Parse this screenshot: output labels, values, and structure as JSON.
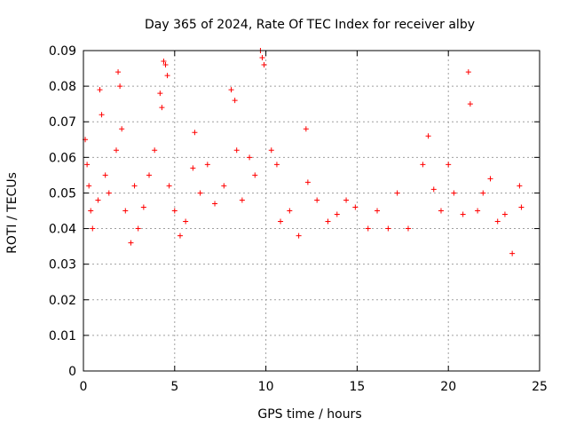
{
  "chart_data": {
    "type": "scatter",
    "title": "Day 365 of 2024, Rate Of TEC Index for receiver alby",
    "xlabel": "GPS time / hours",
    "ylabel": "ROTI / TECUs",
    "xlim": [
      0,
      25
    ],
    "ylim": [
      0,
      0.09
    ],
    "xticks": [
      0,
      5,
      10,
      15,
      20,
      25
    ],
    "yticks": [
      0,
      0.01,
      0.02,
      0.03,
      0.04,
      0.05,
      0.06,
      0.07,
      0.08,
      0.09
    ],
    "ytick_labels": [
      "0",
      "0.01",
      "0.02",
      "0.03",
      "0.04",
      "0.05",
      "0.06",
      "0.07",
      "0.08",
      "0.09"
    ],
    "grid": true,
    "marker": "+",
    "color": "#ff0000",
    "series": [
      {
        "x": [
          0.1,
          0.2,
          0.3,
          0.4,
          0.5,
          0.8,
          0.9,
          1.0,
          1.2,
          1.4,
          1.8,
          1.9,
          2.0,
          2.1,
          2.3,
          2.6,
          2.8,
          3.0,
          3.3,
          3.6,
          3.9,
          4.2,
          4.3,
          4.4,
          4.5,
          4.6,
          4.7,
          5.0,
          5.3,
          5.6,
          6.0,
          6.1,
          6.4,
          6.8,
          7.2,
          7.7,
          8.1,
          8.3,
          8.4,
          8.7,
          9.1,
          9.4,
          9.7,
          9.8,
          9.9,
          10.3,
          10.6,
          10.8,
          11.3,
          11.8,
          12.2,
          12.3,
          12.8,
          13.4,
          13.9,
          14.4,
          14.9,
          15.6,
          16.1,
          16.7,
          17.2,
          17.8,
          18.6,
          18.9,
          19.2,
          19.6,
          20.0,
          20.3,
          20.8,
          21.1,
          21.2,
          21.6,
          21.9,
          22.3,
          22.7,
          23.1,
          23.5,
          23.9,
          24.0
        ],
        "y": [
          0.065,
          0.058,
          0.052,
          0.045,
          0.04,
          0.048,
          0.079,
          0.072,
          0.055,
          0.05,
          0.062,
          0.084,
          0.08,
          0.068,
          0.045,
          0.036,
          0.052,
          0.04,
          0.046,
          0.055,
          0.062,
          0.078,
          0.074,
          0.087,
          0.086,
          0.083,
          0.052,
          0.045,
          0.038,
          0.042,
          0.057,
          0.067,
          0.05,
          0.058,
          0.047,
          0.052,
          0.079,
          0.076,
          0.062,
          0.048,
          0.06,
          0.055,
          0.09,
          0.088,
          0.086,
          0.062,
          0.058,
          0.042,
          0.045,
          0.038,
          0.068,
          0.053,
          0.048,
          0.042,
          0.044,
          0.048,
          0.046,
          0.04,
          0.045,
          0.04,
          0.05,
          0.04,
          0.058,
          0.066,
          0.051,
          0.045,
          0.058,
          0.05,
          0.044,
          0.084,
          0.075,
          0.045,
          0.05,
          0.054,
          0.042,
          0.044,
          0.033,
          0.052,
          0.046
        ]
      }
    ]
  }
}
